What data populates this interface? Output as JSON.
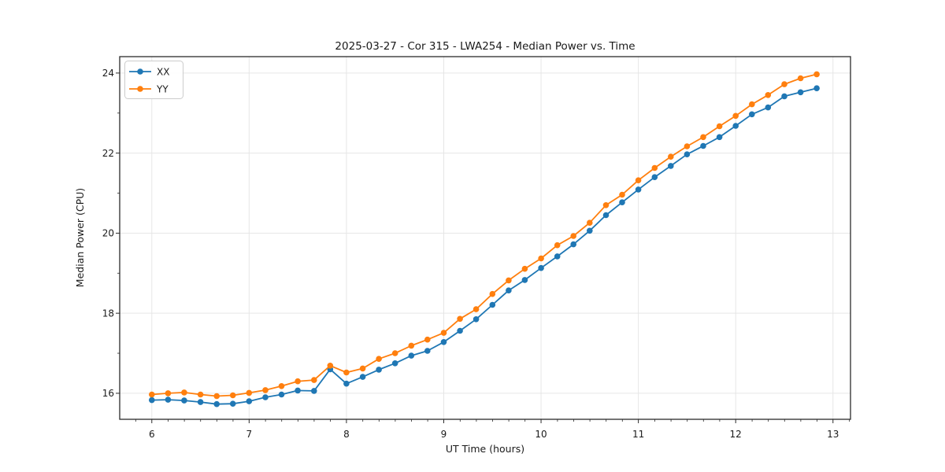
{
  "chart_data": {
    "type": "line",
    "title": "2025-03-27 - Cor 315 - LWA254 - Median Power vs. Time",
    "xlabel": "UT Time (hours)",
    "ylabel": "Median Power (CPU)",
    "xlim": [
      5.67,
      13.18
    ],
    "ylim": [
      15.35,
      24.41
    ],
    "xticks": [
      6,
      7,
      8,
      9,
      10,
      11,
      12,
      13
    ],
    "yticks": [
      16,
      18,
      20,
      22,
      24
    ],
    "x_minor_step": 0.1667,
    "y_minor_step": 1,
    "grid": true,
    "legend_position": "upper-left",
    "x": [
      6.0,
      6.167,
      6.333,
      6.5,
      6.667,
      6.833,
      7.0,
      7.167,
      7.333,
      7.5,
      7.667,
      7.833,
      8.0,
      8.167,
      8.333,
      8.5,
      8.667,
      8.833,
      9.0,
      9.167,
      9.333,
      9.5,
      9.667,
      9.833,
      10.0,
      10.167,
      10.333,
      10.5,
      10.667,
      10.833,
      11.0,
      11.167,
      11.333,
      11.5,
      11.667,
      11.833,
      12.0,
      12.167,
      12.333,
      12.5,
      12.667,
      12.833
    ],
    "series": [
      {
        "name": "XX",
        "color": "#1f77b4",
        "values": [
          15.83,
          15.84,
          15.82,
          15.78,
          15.73,
          15.74,
          15.8,
          15.9,
          15.97,
          16.07,
          16.06,
          16.6,
          16.24,
          16.41,
          16.59,
          16.75,
          16.94,
          17.06,
          17.28,
          17.56,
          17.85,
          18.21,
          18.57,
          18.83,
          19.13,
          19.42,
          19.72,
          20.06,
          20.45,
          20.77,
          21.09,
          21.4,
          21.68,
          21.97,
          22.18,
          22.4,
          22.68,
          22.97,
          23.14,
          23.42,
          23.52,
          23.62
        ]
      },
      {
        "name": "YY",
        "color": "#ff7f0e",
        "values": [
          15.97,
          16.0,
          16.02,
          15.97,
          15.93,
          15.95,
          16.01,
          16.08,
          16.18,
          16.3,
          16.33,
          16.69,
          16.52,
          16.62,
          16.86,
          17.0,
          17.19,
          17.34,
          17.51,
          17.86,
          18.1,
          18.48,
          18.82,
          19.11,
          19.37,
          19.7,
          19.93,
          20.26,
          20.7,
          20.96,
          21.32,
          21.63,
          21.91,
          22.17,
          22.4,
          22.67,
          22.93,
          23.22,
          23.45,
          23.72,
          23.87,
          23.97
        ]
      }
    ]
  },
  "colors": {
    "background": "#ffffff",
    "grid": "#e6e6e6",
    "spine": "#2b2b2b",
    "tick": "#2b2b2b",
    "text": "#1a1a1a",
    "legend_border": "#cccccc"
  }
}
